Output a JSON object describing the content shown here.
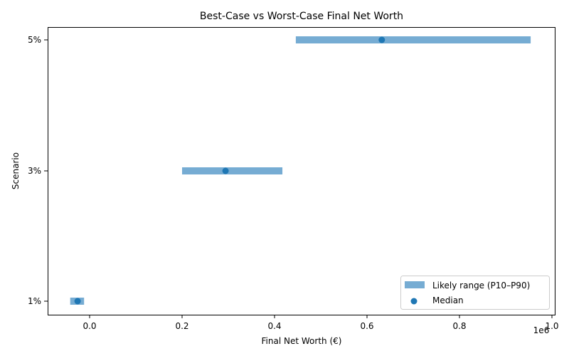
{
  "chart_data": {
    "type": "range-dot",
    "title": "Best-Case vs Worst-Case Final Net Worth",
    "xlabel": "Final Net Worth (€)",
    "ylabel": "Scenario",
    "x_offset_label": "1e6",
    "xlim": [
      -0.09,
      1.005
    ],
    "x_ticks": [
      0.0,
      0.2,
      0.4,
      0.6,
      0.8,
      1.0
    ],
    "x_tick_labels": [
      "0.0",
      "0.2",
      "0.4",
      "0.6",
      "0.8",
      "1.0"
    ],
    "categories": [
      "1%",
      "3%",
      "5%"
    ],
    "series": [
      {
        "name": "Likely range (P10–P90)",
        "type": "range",
        "low": [
          -0.042,
          0.2,
          0.446
        ],
        "high": [
          -0.012,
          0.417,
          0.954
        ],
        "color": "#76acd3"
      },
      {
        "name": "Median",
        "type": "scatter",
        "values": [
          -0.026,
          0.294,
          0.632
        ],
        "color": "#1f77b4"
      }
    ],
    "legend": {
      "position": "lower right",
      "entries": [
        "Likely range (P10–P90)",
        "Median"
      ]
    },
    "grid": false
  }
}
